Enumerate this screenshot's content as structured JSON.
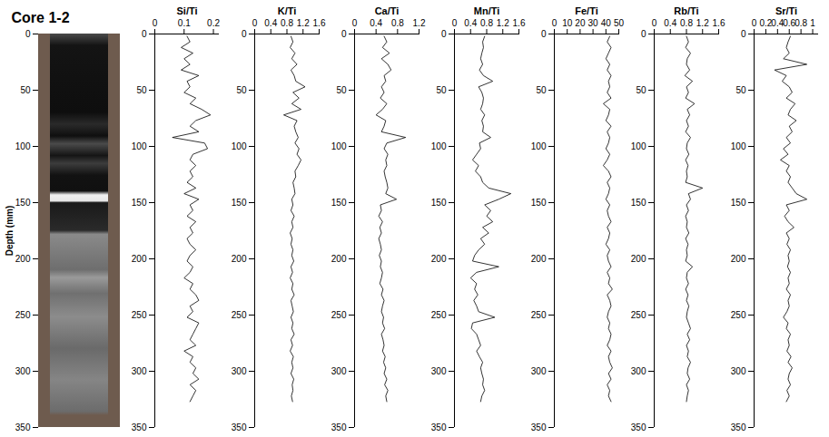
{
  "chart_data": [
    {
      "type": "image",
      "title": "Core 1-2",
      "ylabel": "Depth (mm)",
      "ylim": [
        0,
        350
      ],
      "yticks": [
        0,
        50,
        100,
        150,
        200,
        250,
        300,
        350
      ]
    },
    {
      "type": "line",
      "title": "Si/Ti",
      "color": "#000000",
      "xlim": [
        0,
        0.22
      ],
      "xticks": [
        0,
        0.1,
        0.2
      ],
      "ylim": [
        0,
        350
      ],
      "yticks": [
        0,
        50,
        100,
        150,
        200,
        250,
        300,
        350
      ],
      "y": [
        2,
        7,
        12,
        17,
        22,
        27,
        32,
        37,
        42,
        47,
        52,
        57,
        62,
        67,
        72,
        77,
        82,
        87,
        92,
        97,
        102,
        107,
        112,
        117,
        122,
        127,
        132,
        137,
        142,
        147,
        152,
        157,
        162,
        167,
        172,
        177,
        182,
        187,
        192,
        197,
        202,
        207,
        212,
        217,
        222,
        227,
        232,
        237,
        242,
        247,
        252,
        257,
        262,
        267,
        272,
        277,
        282,
        287,
        292,
        297,
        302,
        307,
        312,
        317,
        322,
        327
      ],
      "x": [
        0.11,
        0.12,
        0.09,
        0.13,
        0.1,
        0.12,
        0.09,
        0.15,
        0.11,
        0.12,
        0.1,
        0.14,
        0.12,
        0.16,
        0.19,
        0.14,
        0.12,
        0.15,
        0.06,
        0.17,
        0.18,
        0.13,
        0.12,
        0.14,
        0.12,
        0.13,
        0.11,
        0.14,
        0.1,
        0.15,
        0.12,
        0.13,
        0.11,
        0.14,
        0.12,
        0.13,
        0.11,
        0.12,
        0.14,
        0.12,
        0.11,
        0.13,
        0.12,
        0.1,
        0.13,
        0.12,
        0.14,
        0.15,
        0.12,
        0.13,
        0.11,
        0.15,
        0.14,
        0.13,
        0.12,
        0.14,
        0.1,
        0.13,
        0.12,
        0.14,
        0.13,
        0.15,
        0.12,
        0.14,
        0.13,
        0.12
      ]
    },
    {
      "type": "line",
      "title": "K/Ti",
      "color": "#000000",
      "xlim": [
        0,
        1.6
      ],
      "xticks": [
        0,
        0.4,
        0.8,
        1.2,
        1.6
      ],
      "ylim": [
        0,
        350
      ],
      "yticks": [
        0,
        50,
        100,
        150,
        200,
        250,
        300,
        350
      ],
      "y": [
        2,
        7,
        12,
        17,
        22,
        27,
        32,
        37,
        42,
        47,
        52,
        57,
        62,
        67,
        72,
        77,
        82,
        87,
        92,
        97,
        102,
        107,
        112,
        117,
        122,
        127,
        132,
        137,
        142,
        147,
        152,
        157,
        162,
        167,
        172,
        177,
        182,
        187,
        192,
        197,
        202,
        207,
        212,
        217,
        222,
        227,
        232,
        237,
        242,
        247,
        252,
        257,
        262,
        267,
        272,
        277,
        282,
        287,
        292,
        297,
        302,
        307,
        312,
        317,
        322,
        327
      ],
      "x": [
        0.9,
        0.95,
        0.88,
        1.0,
        0.92,
        1.05,
        0.9,
        0.98,
        1.02,
        1.25,
        0.95,
        1.1,
        0.92,
        1.15,
        0.72,
        1.05,
        0.98,
        1.02,
        1.08,
        1.0,
        1.1,
        1.05,
        1.15,
        1.08,
        1.0,
        1.02,
        0.95,
        0.98,
        1.0,
        0.92,
        0.95,
        0.9,
        0.98,
        0.92,
        0.95,
        0.88,
        0.93,
        0.9,
        0.95,
        0.92,
        0.97,
        0.9,
        0.94,
        0.88,
        0.95,
        0.92,
        0.98,
        0.9,
        0.93,
        0.96,
        0.9,
        0.95,
        0.92,
        0.98,
        0.9,
        0.94,
        0.88,
        0.96,
        0.92,
        0.95,
        0.9,
        0.97,
        0.93,
        0.95,
        0.91,
        0.94
      ]
    },
    {
      "type": "line",
      "title": "Ca/Ti",
      "color": "#000000",
      "xlim": [
        0,
        1.2
      ],
      "xticks": [
        0,
        0.4,
        0.8,
        1.2
      ],
      "ylim": [
        0,
        350
      ],
      "yticks": [
        0,
        50,
        100,
        150,
        200,
        250,
        300,
        350
      ],
      "y": [
        2,
        7,
        12,
        17,
        22,
        27,
        32,
        37,
        42,
        47,
        52,
        57,
        62,
        67,
        72,
        77,
        82,
        87,
        92,
        97,
        102,
        107,
        112,
        117,
        122,
        127,
        132,
        137,
        142,
        147,
        152,
        157,
        162,
        167,
        172,
        177,
        182,
        187,
        192,
        197,
        202,
        207,
        212,
        217,
        222,
        227,
        232,
        237,
        242,
        247,
        252,
        257,
        262,
        267,
        272,
        277,
        282,
        287,
        292,
        297,
        302,
        307,
        312,
        317,
        322,
        327
      ],
      "x": [
        0.55,
        0.6,
        0.52,
        0.65,
        0.5,
        0.62,
        0.68,
        0.55,
        0.58,
        0.5,
        0.55,
        0.48,
        0.6,
        0.52,
        0.4,
        0.58,
        0.55,
        0.5,
        0.95,
        0.6,
        0.55,
        0.62,
        0.58,
        0.6,
        0.55,
        0.57,
        0.6,
        0.62,
        0.58,
        0.78,
        0.48,
        0.5,
        0.45,
        0.52,
        0.47,
        0.5,
        0.45,
        0.48,
        0.5,
        0.46,
        0.5,
        0.48,
        0.52,
        0.5,
        0.47,
        0.53,
        0.5,
        0.55,
        0.52,
        0.5,
        0.54,
        0.52,
        0.56,
        0.5,
        0.53,
        0.55,
        0.52,
        0.57,
        0.54,
        0.58,
        0.55,
        0.6,
        0.56,
        0.62,
        0.58,
        0.6
      ]
    },
    {
      "type": "line",
      "title": "Mn/Ti",
      "color": "#000000",
      "xlim": [
        0,
        1.6
      ],
      "xticks": [
        0,
        0.4,
        0.8,
        1.2,
        1.6
      ],
      "ylim": [
        0,
        350
      ],
      "yticks": [
        0,
        50,
        100,
        150,
        200,
        250,
        300,
        350
      ],
      "y": [
        2,
        7,
        12,
        17,
        22,
        27,
        32,
        37,
        42,
        47,
        52,
        57,
        62,
        67,
        72,
        77,
        82,
        87,
        92,
        97,
        102,
        107,
        112,
        117,
        122,
        127,
        132,
        137,
        142,
        147,
        152,
        157,
        162,
        167,
        172,
        177,
        182,
        187,
        192,
        197,
        202,
        207,
        212,
        217,
        222,
        227,
        232,
        237,
        242,
        247,
        252,
        257,
        262,
        267,
        272,
        277,
        282,
        287,
        292,
        297,
        302,
        307,
        312,
        317,
        322,
        327
      ],
      "x": [
        0.75,
        0.7,
        0.72,
        0.68,
        0.65,
        0.7,
        0.62,
        0.72,
        0.95,
        0.6,
        0.68,
        0.72,
        0.7,
        0.65,
        0.75,
        0.68,
        0.72,
        0.7,
        0.9,
        0.62,
        0.65,
        0.55,
        0.45,
        0.6,
        0.52,
        0.65,
        0.7,
        0.85,
        1.4,
        1.1,
        0.75,
        0.9,
        0.8,
        0.95,
        0.7,
        0.85,
        0.65,
        0.75,
        0.6,
        0.5,
        0.45,
        1.1,
        0.55,
        0.4,
        0.55,
        0.5,
        0.58,
        0.48,
        0.55,
        0.6,
        1.0,
        0.45,
        0.42,
        0.55,
        0.6,
        0.65,
        0.55,
        0.62,
        0.7,
        0.65,
        0.68,
        0.72,
        0.7,
        0.75,
        0.68,
        0.65
      ]
    },
    {
      "type": "line",
      "title": "Fe/Ti",
      "color": "#000000",
      "xlim": [
        0,
        50
      ],
      "xticks": [
        0,
        10,
        20,
        30,
        40,
        50
      ],
      "ylim": [
        0,
        350
      ],
      "yticks": [
        0,
        50,
        100,
        150,
        200,
        250,
        300,
        350
      ],
      "y": [
        2,
        7,
        12,
        17,
        22,
        27,
        32,
        37,
        42,
        47,
        52,
        57,
        62,
        67,
        72,
        77,
        82,
        87,
        92,
        97,
        102,
        107,
        112,
        117,
        122,
        127,
        132,
        137,
        142,
        147,
        152,
        157,
        162,
        167,
        172,
        177,
        182,
        187,
        192,
        197,
        202,
        207,
        212,
        217,
        222,
        227,
        232,
        237,
        242,
        247,
        252,
        257,
        262,
        267,
        272,
        277,
        282,
        287,
        292,
        297,
        302,
        307,
        312,
        317,
        322,
        327
      ],
      "x": [
        43,
        41,
        44,
        42,
        40,
        43,
        41,
        44,
        42,
        43,
        41,
        44,
        38,
        43,
        42,
        40,
        44,
        41,
        43,
        42,
        40,
        43,
        41,
        38,
        42,
        44,
        41,
        43,
        42,
        40,
        43,
        41,
        42,
        44,
        41,
        43,
        42,
        40,
        43,
        41,
        42,
        44,
        41,
        43,
        42,
        45,
        41,
        43,
        44,
        42,
        41,
        43,
        42,
        44,
        43,
        41,
        44,
        42,
        43,
        45,
        42,
        44,
        41,
        43,
        42,
        44
      ]
    },
    {
      "type": "line",
      "title": "Rb/Ti",
      "color": "#000000",
      "xlim": [
        0,
        1.6
      ],
      "xticks": [
        0,
        0.4,
        0.8,
        1.2,
        1.6
      ],
      "ylim": [
        0,
        350
      ],
      "yticks": [
        0,
        50,
        100,
        150,
        200,
        250,
        300,
        350
      ],
      "y": [
        2,
        7,
        12,
        17,
        22,
        27,
        32,
        37,
        42,
        47,
        52,
        57,
        62,
        67,
        72,
        77,
        82,
        87,
        92,
        97,
        102,
        107,
        112,
        117,
        122,
        127,
        132,
        137,
        142,
        147,
        152,
        157,
        162,
        167,
        172,
        177,
        182,
        187,
        192,
        197,
        202,
        207,
        212,
        217,
        222,
        227,
        232,
        237,
        242,
        247,
        252,
        257,
        262,
        267,
        272,
        277,
        282,
        287,
        292,
        297,
        302,
        307,
        312,
        317,
        322,
        327
      ],
      "x": [
        0.8,
        0.85,
        0.78,
        0.9,
        0.82,
        0.8,
        0.88,
        0.76,
        0.95,
        0.8,
        0.85,
        0.78,
        1.0,
        0.82,
        0.88,
        0.8,
        0.85,
        0.78,
        0.9,
        0.82,
        0.8,
        0.86,
        0.78,
        0.84,
        0.8,
        0.82,
        0.78,
        1.2,
        0.85,
        0.9,
        0.8,
        0.85,
        0.78,
        0.82,
        0.8,
        0.86,
        0.78,
        0.84,
        0.8,
        0.82,
        0.78,
        0.95,
        0.82,
        0.8,
        0.85,
        0.78,
        0.84,
        0.8,
        0.86,
        0.82,
        0.8,
        0.85,
        0.9,
        0.82,
        0.88,
        0.8,
        0.85,
        0.82,
        0.9,
        0.84,
        0.82,
        0.88,
        0.8,
        0.85,
        0.82,
        0.8
      ]
    },
    {
      "type": "line",
      "title": "Sr/Ti",
      "color": "#000000",
      "xlim": [
        0,
        1.1
      ],
      "xticks": [
        0,
        0.2,
        0.4,
        0.6,
        0.8,
        1
      ],
      "ylim": [
        0,
        350
      ],
      "yticks": [
        0,
        50,
        100,
        150,
        200,
        250,
        300,
        350
      ],
      "y": [
        2,
        7,
        12,
        17,
        22,
        27,
        32,
        37,
        42,
        47,
        52,
        57,
        62,
        67,
        72,
        77,
        82,
        87,
        92,
        97,
        102,
        107,
        112,
        117,
        122,
        127,
        132,
        137,
        142,
        147,
        152,
        157,
        162,
        167,
        172,
        177,
        182,
        187,
        192,
        197,
        202,
        207,
        212,
        217,
        222,
        227,
        232,
        237,
        242,
        247,
        252,
        257,
        262,
        267,
        272,
        277,
        282,
        287,
        292,
        297,
        302,
        307,
        312,
        317,
        322,
        327
      ],
      "x": [
        0.62,
        0.58,
        0.55,
        0.6,
        0.5,
        0.9,
        0.35,
        0.55,
        0.48,
        0.6,
        0.65,
        0.55,
        0.7,
        0.62,
        0.58,
        0.72,
        0.6,
        0.65,
        0.55,
        0.62,
        0.5,
        0.58,
        0.45,
        0.6,
        0.55,
        0.62,
        0.58,
        0.65,
        0.72,
        0.9,
        0.55,
        0.6,
        0.52,
        0.58,
        0.68,
        0.55,
        0.6,
        0.56,
        0.62,
        0.58,
        0.6,
        0.57,
        0.62,
        0.58,
        0.6,
        0.55,
        0.62,
        0.58,
        0.6,
        0.56,
        0.5,
        0.58,
        0.55,
        0.62,
        0.58,
        0.6,
        0.56,
        0.63,
        0.58,
        0.65,
        0.6,
        0.58,
        0.62,
        0.56,
        0.6,
        0.55
      ]
    }
  ]
}
